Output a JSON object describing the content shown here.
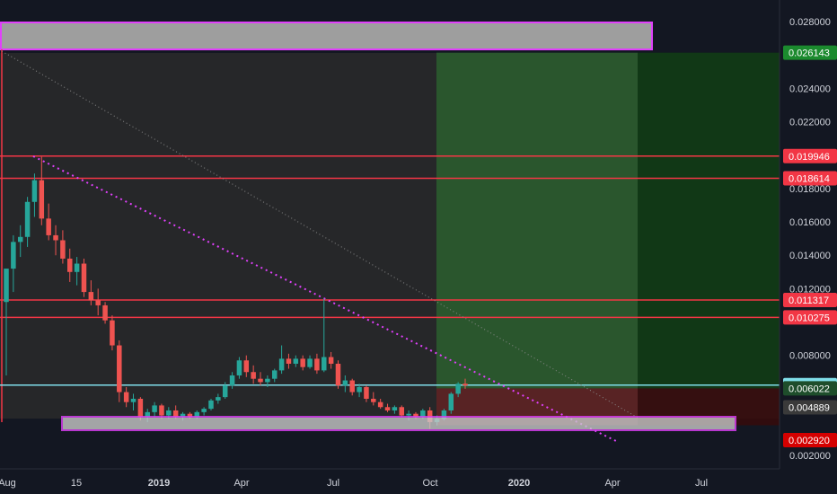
{
  "chart_data": {
    "type": "candlestick",
    "instrument_title": "",
    "colors": {
      "background": "#131722",
      "up": "#26a69a",
      "down": "#ef5350",
      "gridline": "#1e222d",
      "text": "#d1d4dc",
      "resistance": "#f23645",
      "current_price": "#80deea",
      "trendline": "#e040fb",
      "zone_fill": "#9e9e9e",
      "zone_border": "#e040fb",
      "profit_zone": "#2e7d32",
      "loss_zone": "#b71c1c"
    },
    "y_axis": {
      "min": 0.0012,
      "max": 0.0293,
      "ticks": [
        "0.028000",
        "0.024000",
        "0.022000",
        "0.018000",
        "0.016000",
        "0.014000",
        "0.012000",
        "0.008000",
        "0.002000"
      ]
    },
    "x_axis": {
      "ticks": [
        "Aug",
        "15",
        "2019",
        "Apr",
        "Jul",
        "Oct",
        "2020",
        "Apr",
        "Jul"
      ]
    },
    "price_labels": [
      {
        "value": "0.026143",
        "kind": "profit-target"
      },
      {
        "value": "0.019946",
        "kind": "resistance"
      },
      {
        "value": "0.018614",
        "kind": "resistance"
      },
      {
        "value": "0.011317",
        "kind": "resistance"
      },
      {
        "value": "0.010275",
        "kind": "resistance"
      },
      {
        "value": "0.006221",
        "kind": "current"
      },
      {
        "value": "0.006022",
        "kind": "entry"
      },
      {
        "value": "0.004889",
        "kind": "stop"
      },
      {
        "value": "0.002920",
        "kind": "support"
      }
    ],
    "horizontal_lines": [
      0.019946,
      0.018614,
      0.011317,
      0.010275,
      0.006221
    ],
    "zones": {
      "top_box": {
        "from": 0.0265,
        "to": 0.0281
      },
      "bottom_box": {
        "from": 0.0029,
        "to": 0.0037
      },
      "position": {
        "entry": 0.006022,
        "target": 0.026143,
        "stop": 0.004889
      }
    },
    "candles": [
      [
        0.0112,
        0.0132,
        0.0068,
        0.0132
      ],
      [
        0.0132,
        0.0152,
        0.0118,
        0.0148
      ],
      [
        0.0148,
        0.0158,
        0.0139,
        0.0151
      ],
      [
        0.0151,
        0.0175,
        0.0145,
        0.0172
      ],
      [
        0.0172,
        0.0189,
        0.0163,
        0.0185
      ],
      [
        0.0185,
        0.0199,
        0.0158,
        0.0162
      ],
      [
        0.0162,
        0.0171,
        0.0149,
        0.0152
      ],
      [
        0.0152,
        0.0158,
        0.014,
        0.0149
      ],
      [
        0.0149,
        0.0155,
        0.0135,
        0.0138
      ],
      [
        0.0138,
        0.0144,
        0.0124,
        0.013
      ],
      [
        0.013,
        0.0139,
        0.0122,
        0.0135
      ],
      [
        0.0135,
        0.0138,
        0.0115,
        0.0118
      ],
      [
        0.0118,
        0.0125,
        0.011,
        0.0113
      ],
      [
        0.0113,
        0.012,
        0.0104,
        0.011
      ],
      [
        0.011,
        0.0112,
        0.0099,
        0.0101
      ],
      [
        0.0101,
        0.0104,
        0.0083,
        0.0086
      ],
      [
        0.0086,
        0.0089,
        0.0052,
        0.0058
      ],
      [
        0.0058,
        0.0061,
        0.0049,
        0.0052
      ],
      [
        0.0052,
        0.0057,
        0.0047,
        0.0054
      ],
      [
        0.0054,
        0.0055,
        0.0041,
        0.0043
      ],
      [
        0.0043,
        0.0048,
        0.004,
        0.0046
      ],
      [
        0.0046,
        0.0052,
        0.0043,
        0.005
      ],
      [
        0.005,
        0.0051,
        0.0042,
        0.0044
      ],
      [
        0.0044,
        0.0049,
        0.0042,
        0.0047
      ],
      [
        0.0047,
        0.005,
        0.0042,
        0.0043
      ],
      [
        0.0043,
        0.0046,
        0.0041,
        0.0045
      ],
      [
        0.0045,
        0.0046,
        0.0042,
        0.0043
      ],
      [
        0.0043,
        0.0047,
        0.0042,
        0.0046
      ],
      [
        0.0046,
        0.0049,
        0.0044,
        0.0048
      ],
      [
        0.0048,
        0.0054,
        0.0047,
        0.0053
      ],
      [
        0.0053,
        0.0057,
        0.0051,
        0.0055
      ],
      [
        0.0055,
        0.0064,
        0.0054,
        0.0062
      ],
      [
        0.0062,
        0.007,
        0.006,
        0.0068
      ],
      [
        0.0068,
        0.0079,
        0.0066,
        0.0077
      ],
      [
        0.0077,
        0.008,
        0.0067,
        0.007
      ],
      [
        0.007,
        0.0074,
        0.0063,
        0.0066
      ],
      [
        0.0066,
        0.007,
        0.0062,
        0.0064
      ],
      [
        0.0064,
        0.0068,
        0.0061,
        0.0066
      ],
      [
        0.0066,
        0.0072,
        0.0064,
        0.0071
      ],
      [
        0.0071,
        0.0086,
        0.0069,
        0.0078
      ],
      [
        0.0078,
        0.0081,
        0.0072,
        0.0075
      ],
      [
        0.0075,
        0.008,
        0.0073,
        0.0078
      ],
      [
        0.0078,
        0.008,
        0.0071,
        0.0073
      ],
      [
        0.0073,
        0.008,
        0.0072,
        0.0078
      ],
      [
        0.0078,
        0.0081,
        0.0069,
        0.0071
      ],
      [
        0.0071,
        0.0114,
        0.007,
        0.0079
      ],
      [
        0.0079,
        0.0082,
        0.0072,
        0.0075
      ],
      [
        0.0075,
        0.0077,
        0.006,
        0.0062
      ],
      [
        0.0062,
        0.0068,
        0.0058,
        0.0065
      ],
      [
        0.0065,
        0.0066,
        0.0056,
        0.0058
      ],
      [
        0.0058,
        0.0063,
        0.0055,
        0.0061
      ],
      [
        0.0061,
        0.0062,
        0.0052,
        0.0054
      ],
      [
        0.0054,
        0.0058,
        0.005,
        0.0052
      ],
      [
        0.0052,
        0.0054,
        0.0048,
        0.0049
      ],
      [
        0.0049,
        0.0051,
        0.0046,
        0.0047
      ],
      [
        0.0047,
        0.005,
        0.0045,
        0.0049
      ],
      [
        0.0049,
        0.005,
        0.0043,
        0.0044
      ],
      [
        0.0044,
        0.0047,
        0.0041,
        0.0045
      ],
      [
        0.0045,
        0.0046,
        0.0042,
        0.0043
      ],
      [
        0.0043,
        0.0048,
        0.0042,
        0.0047
      ],
      [
        0.0047,
        0.0049,
        0.0036,
        0.004
      ],
      [
        0.004,
        0.0044,
        0.0038,
        0.0042
      ],
      [
        0.0042,
        0.0048,
        0.0041,
        0.0047
      ],
      [
        0.0047,
        0.0058,
        0.0045,
        0.0057
      ],
      [
        0.0057,
        0.0064,
        0.0055,
        0.0063
      ],
      [
        0.0063,
        0.0066,
        0.006,
        0.0062
      ]
    ]
  }
}
